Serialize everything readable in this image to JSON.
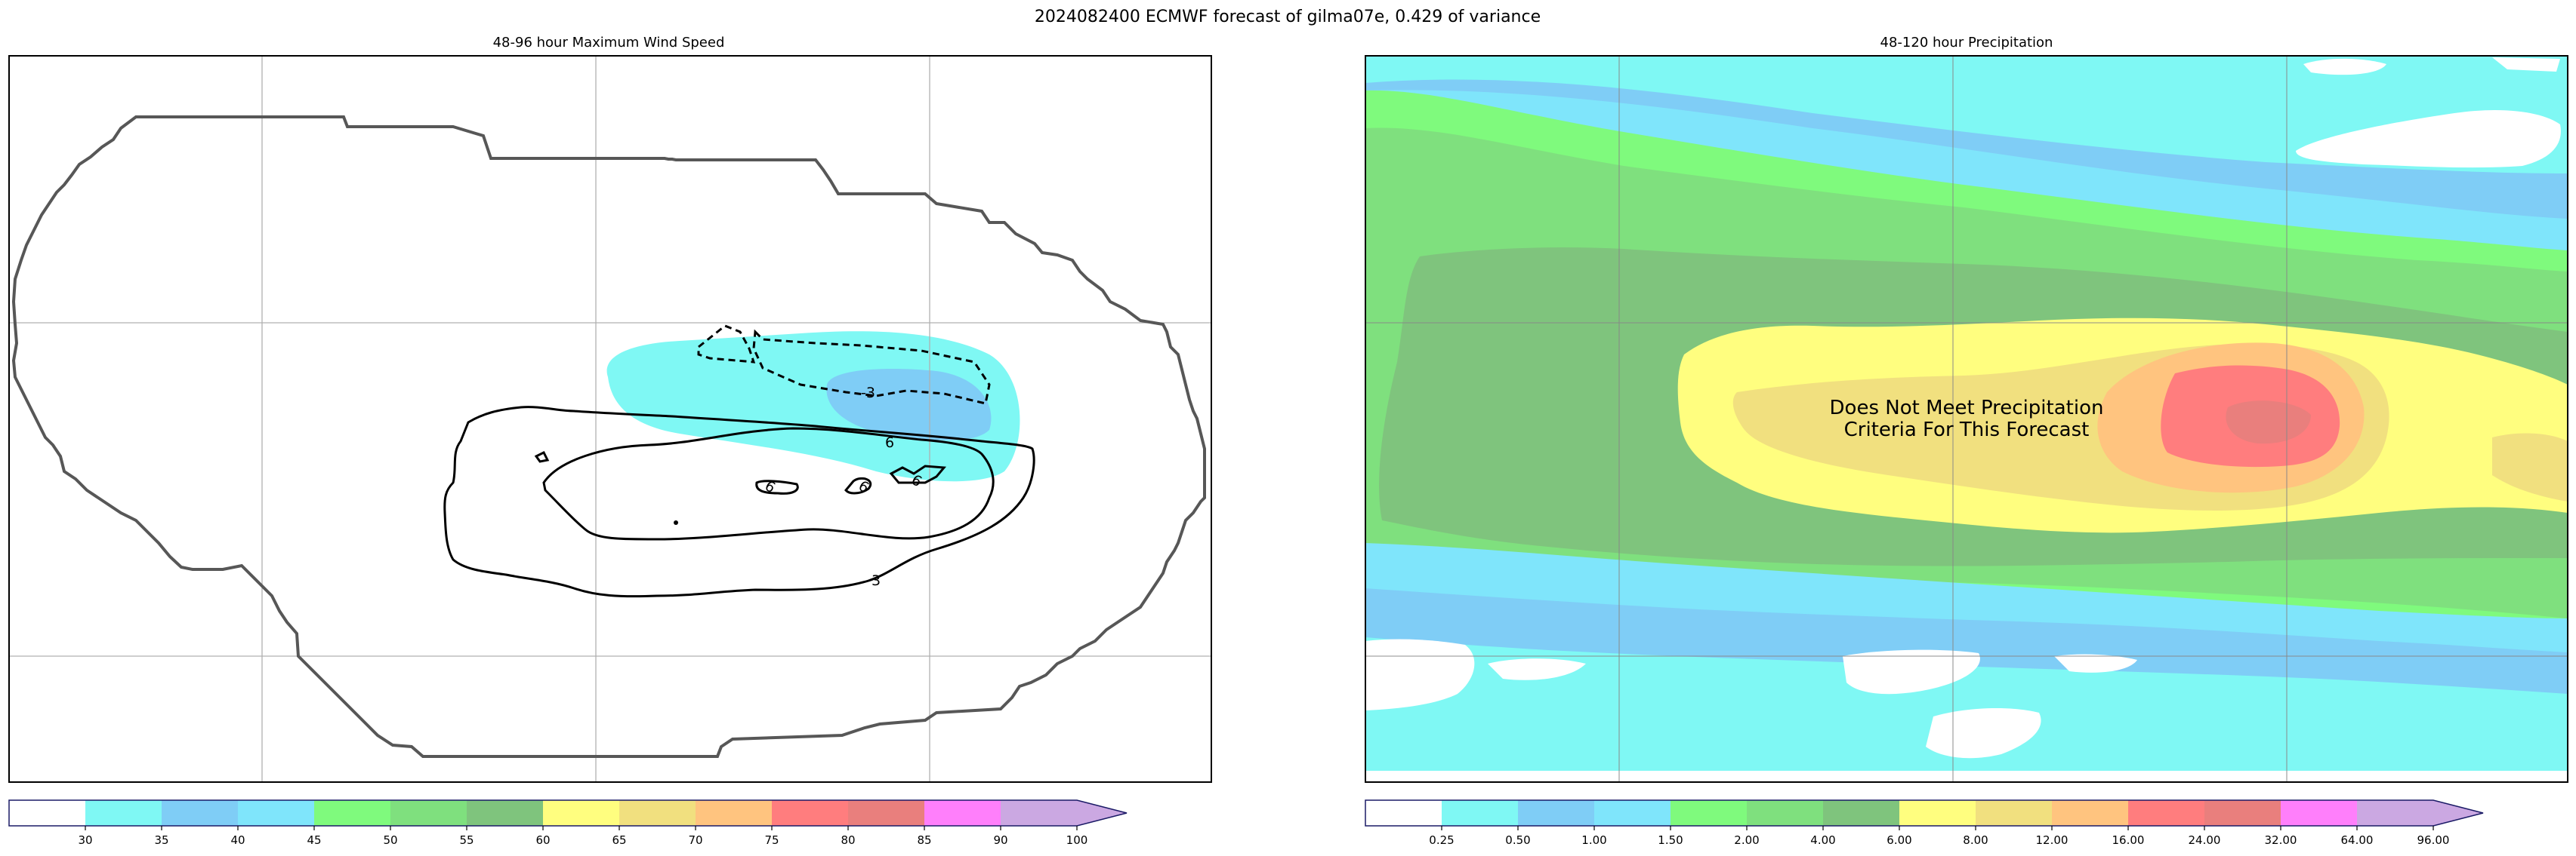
{
  "suptitle": "2024082400 ECMWF forecast of gilma07e, 0.429 of variance",
  "chart_data": [
    {
      "type": "heatmap",
      "title": "48-96 hour Maximum Wind Speed",
      "grid": true,
      "colorbar": {
        "levels": [
          30,
          35,
          40,
          45,
          50,
          55,
          60,
          65,
          70,
          75,
          80,
          85,
          90,
          100
        ],
        "tick_labels": [
          "30",
          "35",
          "40",
          "45",
          "50",
          "55",
          "60",
          "65",
          "70",
          "75",
          "80",
          "85",
          "90",
          "100"
        ],
        "colors": [
          "#ffffff",
          "#7ff8f4",
          "#7fcdf6",
          "#7fe5fb",
          "#7ffa7d",
          "#7fe07e",
          "#7fc47d",
          "#fffe7f",
          "#f1e07f",
          "#ffc47f",
          "#ff7d7e",
          "#e97f7d",
          "#ff7ffb",
          "#cba8e2"
        ],
        "extend": "max"
      },
      "contours": [
        {
          "label": "3",
          "style": "solid"
        },
        {
          "label": "6",
          "style": "solid"
        },
        {
          "label": "9",
          "style": "solid"
        },
        {
          "label": "-3",
          "style": "dashed"
        }
      ]
    },
    {
      "type": "heatmap",
      "title": "48-120 hour Precipitation",
      "grid": true,
      "annotation": "Does Not Meet Precipitation\nCriteria For This Forecast",
      "colorbar": {
        "levels": [
          0.25,
          0.5,
          1.0,
          1.5,
          2.0,
          4.0,
          6.0,
          8.0,
          12.0,
          16.0,
          24.0,
          32.0,
          64.0,
          96.0
        ],
        "tick_labels": [
          "0.25",
          "0.50",
          "1.00",
          "1.50",
          "2.00",
          "4.00",
          "6.00",
          "8.00",
          "12.00",
          "16.00",
          "24.00",
          "32.00",
          "64.00",
          "96.00"
        ],
        "colors": [
          "#ffffff",
          "#7ff8f4",
          "#7fcdf6",
          "#7fe5fb",
          "#7ffa7d",
          "#7fe07e",
          "#7fc47d",
          "#fffe7f",
          "#f1e07f",
          "#ffc47f",
          "#ff7d7e",
          "#e97f7d",
          "#ff7ffb",
          "#cba8e2"
        ],
        "extend": "max"
      }
    }
  ]
}
